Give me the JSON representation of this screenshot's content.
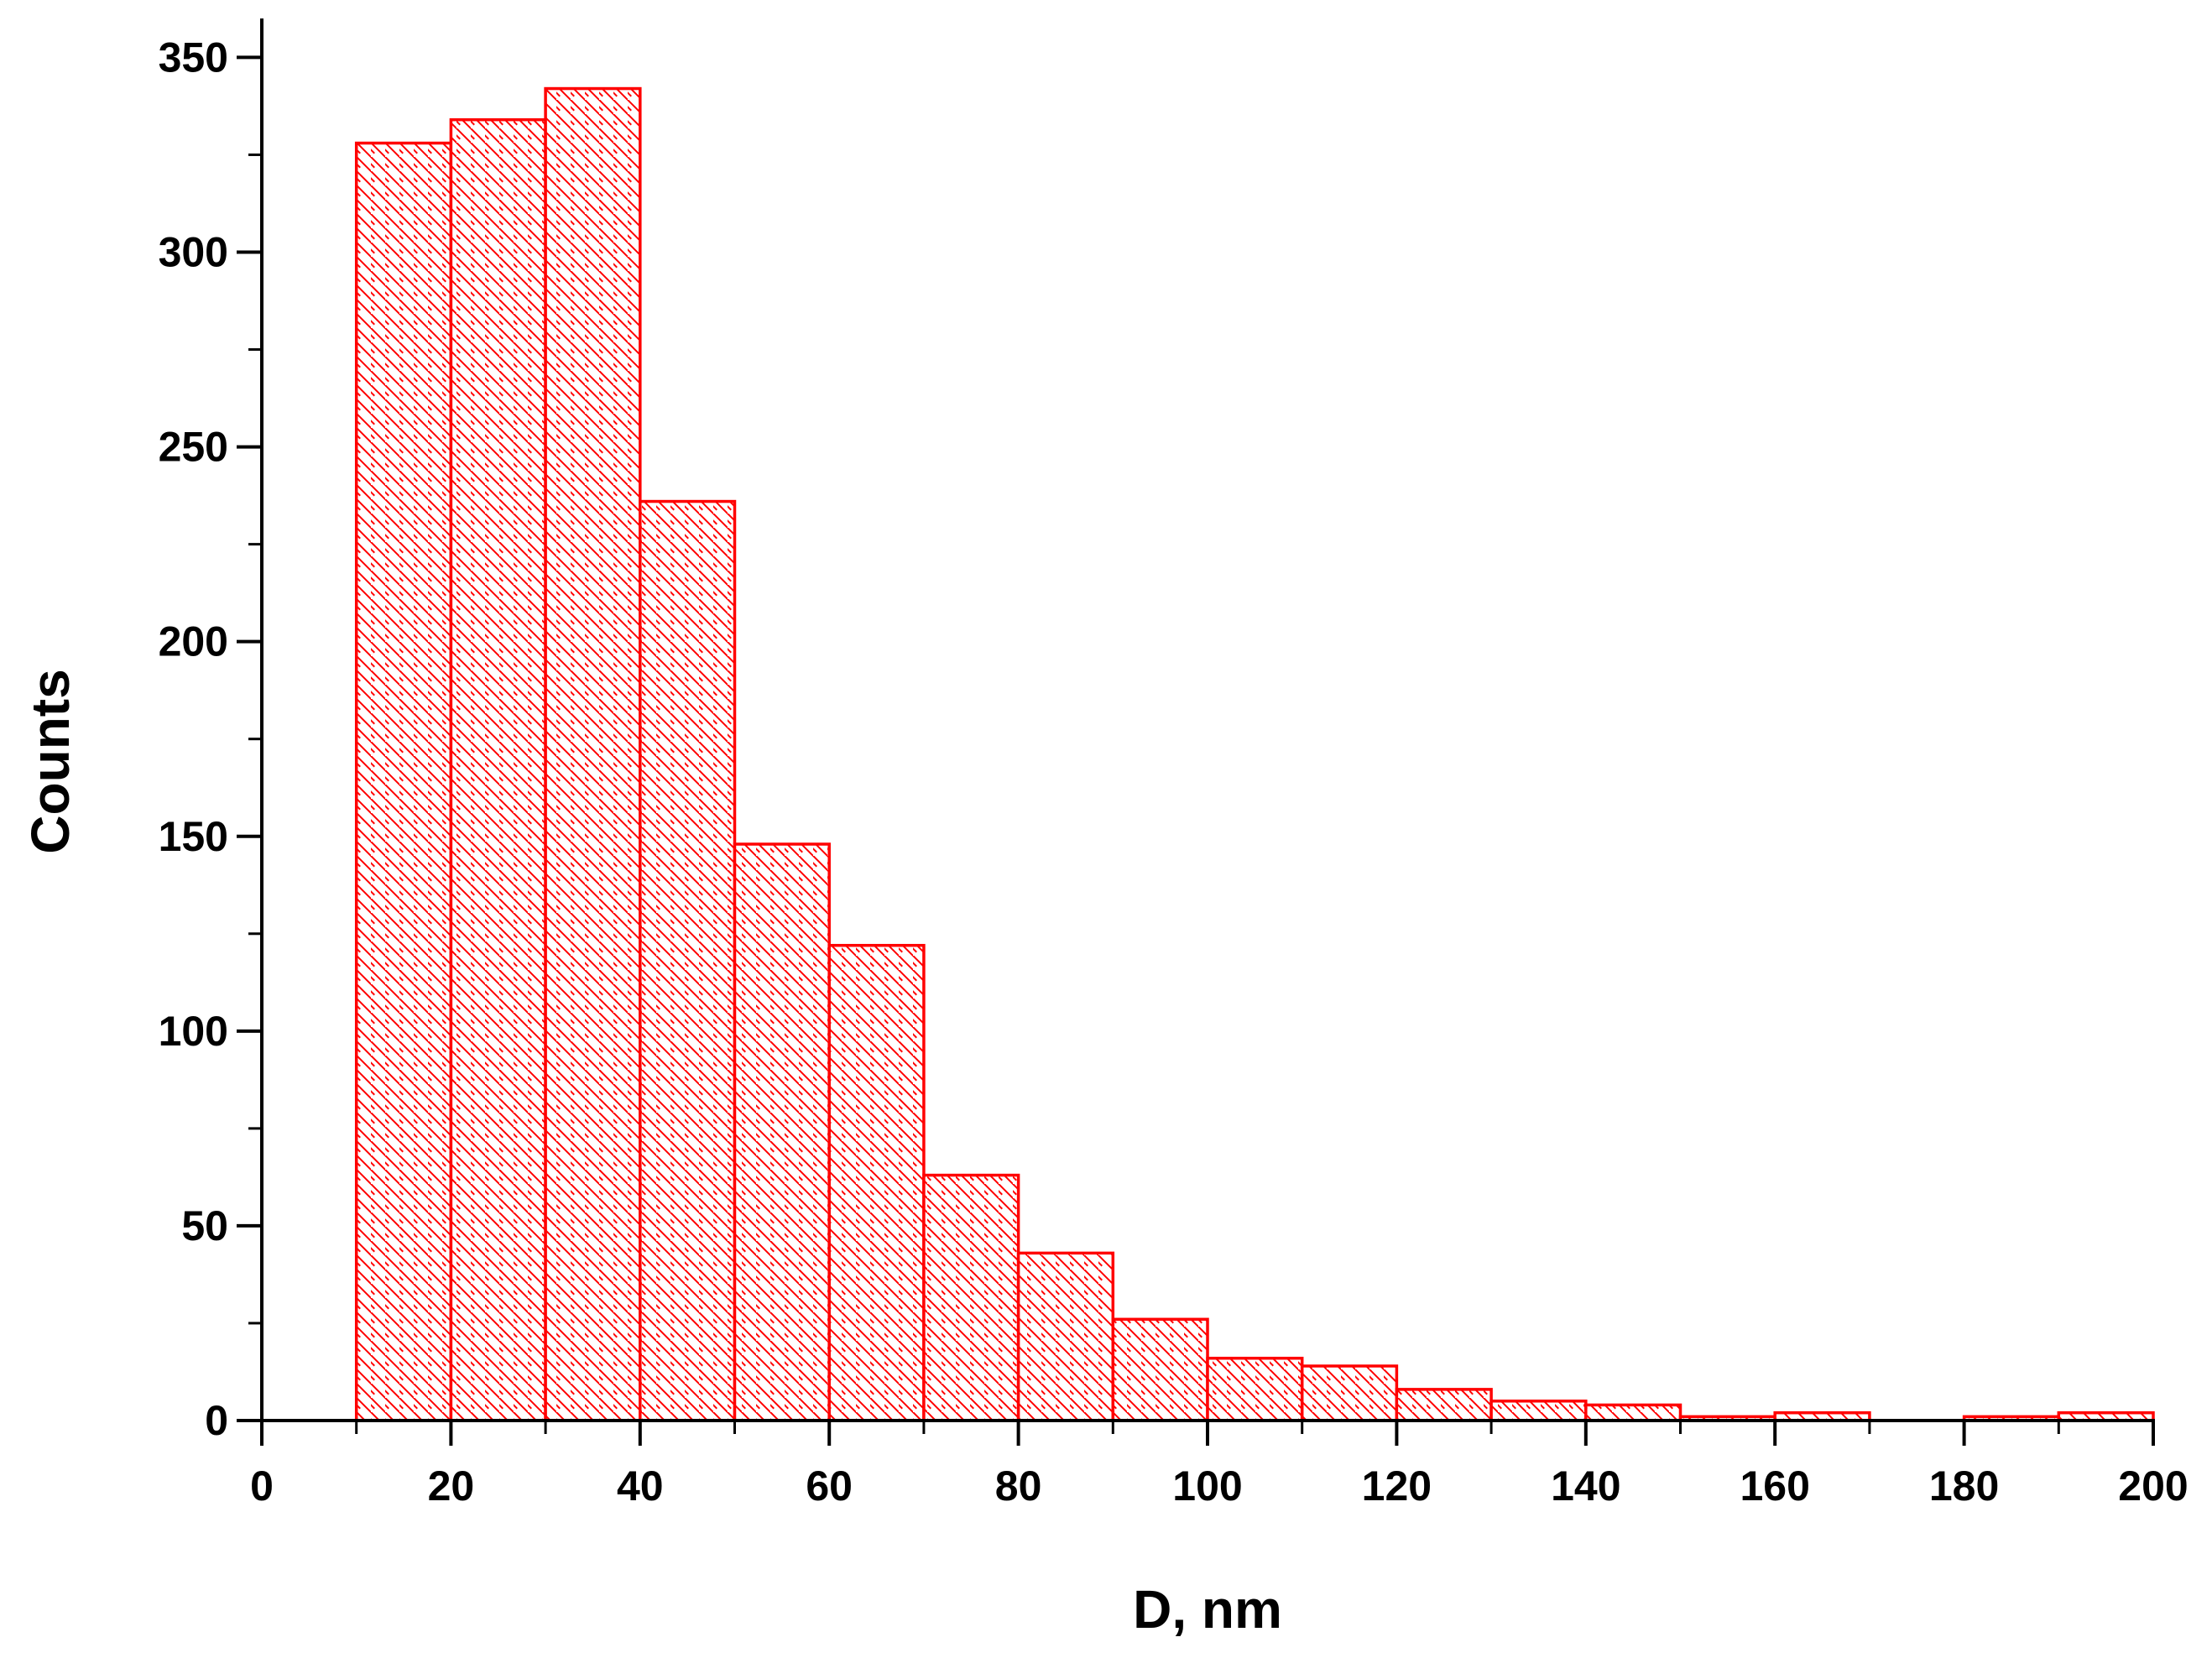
{
  "chart_data": {
    "type": "bar",
    "title": "",
    "xlabel": "D, nm",
    "ylabel": "Counts",
    "xlim": [
      0,
      200
    ],
    "ylim": [
      0,
      360
    ],
    "grid": false,
    "legend": "none",
    "bar_color": "#ff0000",
    "bar_fill": "hatched",
    "x_ticks": [
      "0",
      "20",
      "40",
      "60",
      "80",
      "100",
      "120",
      "140",
      "160",
      "180",
      "200"
    ],
    "y_ticks": [
      "0",
      "50",
      "100",
      "150",
      "200",
      "250",
      "300",
      "350"
    ],
    "bins": [
      {
        "x0": 10,
        "x1": 20,
        "count": 328
      },
      {
        "x0": 20,
        "x1": 30,
        "count": 334
      },
      {
        "x0": 30,
        "x1": 40,
        "count": 342
      },
      {
        "x0": 40,
        "x1": 50,
        "count": 236
      },
      {
        "x0": 50,
        "x1": 60,
        "count": 148
      },
      {
        "x0": 60,
        "x1": 70,
        "count": 122
      },
      {
        "x0": 70,
        "x1": 80,
        "count": 63
      },
      {
        "x0": 80,
        "x1": 90,
        "count": 43
      },
      {
        "x0": 90,
        "x1": 100,
        "count": 26
      },
      {
        "x0": 100,
        "x1": 110,
        "count": 16
      },
      {
        "x0": 110,
        "x1": 120,
        "count": 14
      },
      {
        "x0": 120,
        "x1": 130,
        "count": 8
      },
      {
        "x0": 130,
        "x1": 140,
        "count": 5
      },
      {
        "x0": 140,
        "x1": 150,
        "count": 4
      },
      {
        "x0": 150,
        "x1": 160,
        "count": 1
      },
      {
        "x0": 160,
        "x1": 170,
        "count": 2
      },
      {
        "x0": 170,
        "x1": 180,
        "count": 0
      },
      {
        "x0": 180,
        "x1": 190,
        "count": 1
      },
      {
        "x0": 190,
        "x1": 200,
        "count": 2
      }
    ]
  }
}
